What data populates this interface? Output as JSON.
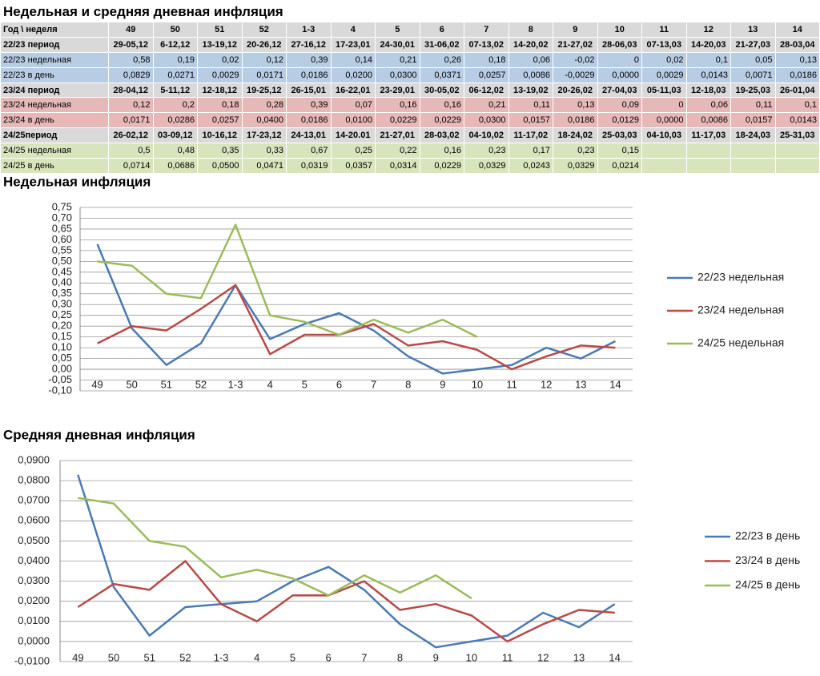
{
  "table": {
    "title": "Недельная и средняя дневная инфляция",
    "header": [
      "Год \\ неделя",
      "49",
      "50",
      "51",
      "52",
      "1-3",
      "4",
      "5",
      "6",
      "7",
      "8",
      "9",
      "10",
      "11",
      "12",
      "13",
      "14"
    ],
    "rows": [
      {
        "label": "22/23 период",
        "cells": [
          "29-05,12",
          "6-12,12",
          "13-19,12",
          "20-26,12",
          "27-16,12",
          "17-23,01",
          "24-30,01",
          "31-06,02",
          "07-13,02",
          "14-20,02",
          "21-27,02",
          "28-06,03",
          "07-13,03",
          "14-20,03",
          "21-27,03",
          "28-03,04"
        ]
      },
      {
        "label": "22/23 недельная",
        "cells": [
          "0,58",
          "0,19",
          "0,02",
          "0,12",
          "0,39",
          "0,14",
          "0,21",
          "0,26",
          "0,18",
          "0,06",
          "-0,02",
          "0",
          "0,02",
          "0,1",
          "0,05",
          "0,13"
        ]
      },
      {
        "label": "22/23 в день",
        "cells": [
          "0,0829",
          "0,0271",
          "0,0029",
          "0,0171",
          "0,0186",
          "0,0200",
          "0,0300",
          "0,0371",
          "0,0257",
          "0,0086",
          "-0,0029",
          "0,0000",
          "0,0029",
          "0,0143",
          "0,0071",
          "0,0186"
        ]
      },
      {
        "label": "23/24 период",
        "cells": [
          "28-04,12",
          "5-11,12",
          "12-18,12",
          "19-25,12",
          "26-15,01",
          "16-22,01",
          "23-29,01",
          "30-05,02",
          "06-12,02",
          "13-19,02",
          "20-26,02",
          "27-04,03",
          "05-11,03",
          "12-18,03",
          "19-25,03",
          "26-01,04"
        ]
      },
      {
        "label": "23/24 недельная",
        "cells": [
          "0,12",
          "0,2",
          "0,18",
          "0,28",
          "0,39",
          "0,07",
          "0,16",
          "0,16",
          "0,21",
          "0,11",
          "0,13",
          "0,09",
          "0",
          "0,06",
          "0,11",
          "0,1"
        ]
      },
      {
        "label": "23/24 в день",
        "cells": [
          "0,0171",
          "0,0286",
          "0,0257",
          "0,0400",
          "0,0186",
          "0,0100",
          "0,0229",
          "0,0229",
          "0,0300",
          "0,0157",
          "0,0186",
          "0,0129",
          "0,0000",
          "0,0086",
          "0,0157",
          "0,0143"
        ]
      },
      {
        "label": "24/25период",
        "cells": [
          "26-02,12",
          "03-09,12",
          "10-16,12",
          "17-23,12",
          "24-13,01",
          "14-20.01",
          "21-27,01",
          "28-03,02",
          "04-10,02",
          "11-17,02",
          "18-24,02",
          "25-03,03",
          "04-10,03",
          "11-17,03",
          "18-24,03",
          "25-31,03"
        ]
      },
      {
        "label": "24/25 недельная",
        "cells": [
          "0,5",
          "0,48",
          "0,35",
          "0,33",
          "0,67",
          "0,25",
          "0,22",
          "0,16",
          "0,23",
          "0,17",
          "0,23",
          "0,15"
        ]
      },
      {
        "label": "24/25 в день",
        "cells": [
          "0,0714",
          "0,0686",
          "0,0500",
          "0,0471",
          "0,0319",
          "0,0357",
          "0,0314",
          "0,0229",
          "0,0329",
          "0,0243",
          "0,0329",
          "0,0214"
        ]
      }
    ]
  },
  "chart_data": [
    {
      "type": "line",
      "title": "Недельная инфляция",
      "categories": [
        "49",
        "50",
        "51",
        "52",
        "1-3",
        "4",
        "5",
        "6",
        "7",
        "8",
        "9",
        "10",
        "11",
        "12",
        "13",
        "14"
      ],
      "series": [
        {
          "name": "22/23 недельная",
          "color": "#4a7ab5",
          "values": [
            0.58,
            0.19,
            0.02,
            0.12,
            0.39,
            0.14,
            0.21,
            0.26,
            0.18,
            0.06,
            -0.02,
            0,
            0.02,
            0.1,
            0.05,
            0.13
          ]
        },
        {
          "name": "23/24 недельная",
          "color": "#b84a47",
          "values": [
            0.12,
            0.2,
            0.18,
            0.28,
            0.39,
            0.07,
            0.16,
            0.16,
            0.21,
            0.11,
            0.13,
            0.09,
            0,
            0.06,
            0.11,
            0.1
          ]
        },
        {
          "name": "24/25 недельная",
          "color": "#9bbb59",
          "values": [
            0.5,
            0.48,
            0.35,
            0.33,
            0.67,
            0.25,
            0.22,
            0.16,
            0.23,
            0.17,
            0.23,
            0.15,
            null,
            null,
            null,
            null
          ]
        }
      ],
      "ylim": [
        -0.1,
        0.75
      ],
      "yticks": [
        {
          "value": -0.1,
          "label": "-0,10"
        },
        {
          "value": -0.05,
          "label": "-0,05"
        },
        {
          "value": 0,
          "label": "0,00"
        },
        {
          "value": 0.05,
          "label": "0,05"
        },
        {
          "value": 0.1,
          "label": "0,10"
        },
        {
          "value": 0.15,
          "label": "0,15"
        },
        {
          "value": 0.2,
          "label": "0,20"
        },
        {
          "value": 0.25,
          "label": "0,25"
        },
        {
          "value": 0.3,
          "label": "0,30"
        },
        {
          "value": 0.35,
          "label": "0,35"
        },
        {
          "value": 0.4,
          "label": "0,40"
        },
        {
          "value": 0.45,
          "label": "0,45"
        },
        {
          "value": 0.5,
          "label": "0,50"
        },
        {
          "value": 0.55,
          "label": "0,55"
        },
        {
          "value": 0.6,
          "label": "0,60"
        },
        {
          "value": 0.65,
          "label": "0,65"
        },
        {
          "value": 0.7,
          "label": "0,70"
        },
        {
          "value": 0.75,
          "label": "0,75"
        }
      ],
      "grid": true,
      "legend": "right"
    },
    {
      "type": "line",
      "title": "Средняя дневная инфляция",
      "categories": [
        "49",
        "50",
        "51",
        "52",
        "1-3",
        "4",
        "5",
        "6",
        "7",
        "8",
        "9",
        "10",
        "11",
        "12",
        "13",
        "14"
      ],
      "series": [
        {
          "name": "22/23 в день",
          "color": "#4a7ab5",
          "values": [
            0.0829,
            0.0271,
            0.0029,
            0.0171,
            0.0186,
            0.02,
            0.03,
            0.0371,
            0.0257,
            0.0086,
            -0.0029,
            0,
            0.0029,
            0.0143,
            0.0071,
            0.0186
          ]
        },
        {
          "name": "23/24 в день",
          "color": "#b84a47",
          "values": [
            0.0171,
            0.0286,
            0.0257,
            0.04,
            0.0186,
            0.01,
            0.0229,
            0.0229,
            0.03,
            0.0157,
            0.0186,
            0.0129,
            0,
            0.0086,
            0.0157,
            0.0143
          ]
        },
        {
          "name": "24/25 в день",
          "color": "#9bbb59",
          "values": [
            0.0714,
            0.0686,
            0.05,
            0.0471,
            0.0319,
            0.0357,
            0.0314,
            0.0229,
            0.0329,
            0.0243,
            0.0329,
            0.0214,
            null,
            null,
            null,
            null
          ]
        }
      ],
      "ylim": [
        -0.01,
        0.09
      ],
      "yticks": [
        {
          "value": -0.01,
          "label": "-0,0100"
        },
        {
          "value": 0,
          "label": "0,0000"
        },
        {
          "value": 0.01,
          "label": "0,0100"
        },
        {
          "value": 0.02,
          "label": "0,0200"
        },
        {
          "value": 0.03,
          "label": "0,0300"
        },
        {
          "value": 0.04,
          "label": "0,0400"
        },
        {
          "value": 0.05,
          "label": "0,0500"
        },
        {
          "value": 0.06,
          "label": "0,0600"
        },
        {
          "value": 0.07,
          "label": "0,0700"
        },
        {
          "value": 0.08,
          "label": "0,0800"
        },
        {
          "value": 0.09,
          "label": "0,0900"
        }
      ],
      "grid": true,
      "legend": "right"
    }
  ]
}
